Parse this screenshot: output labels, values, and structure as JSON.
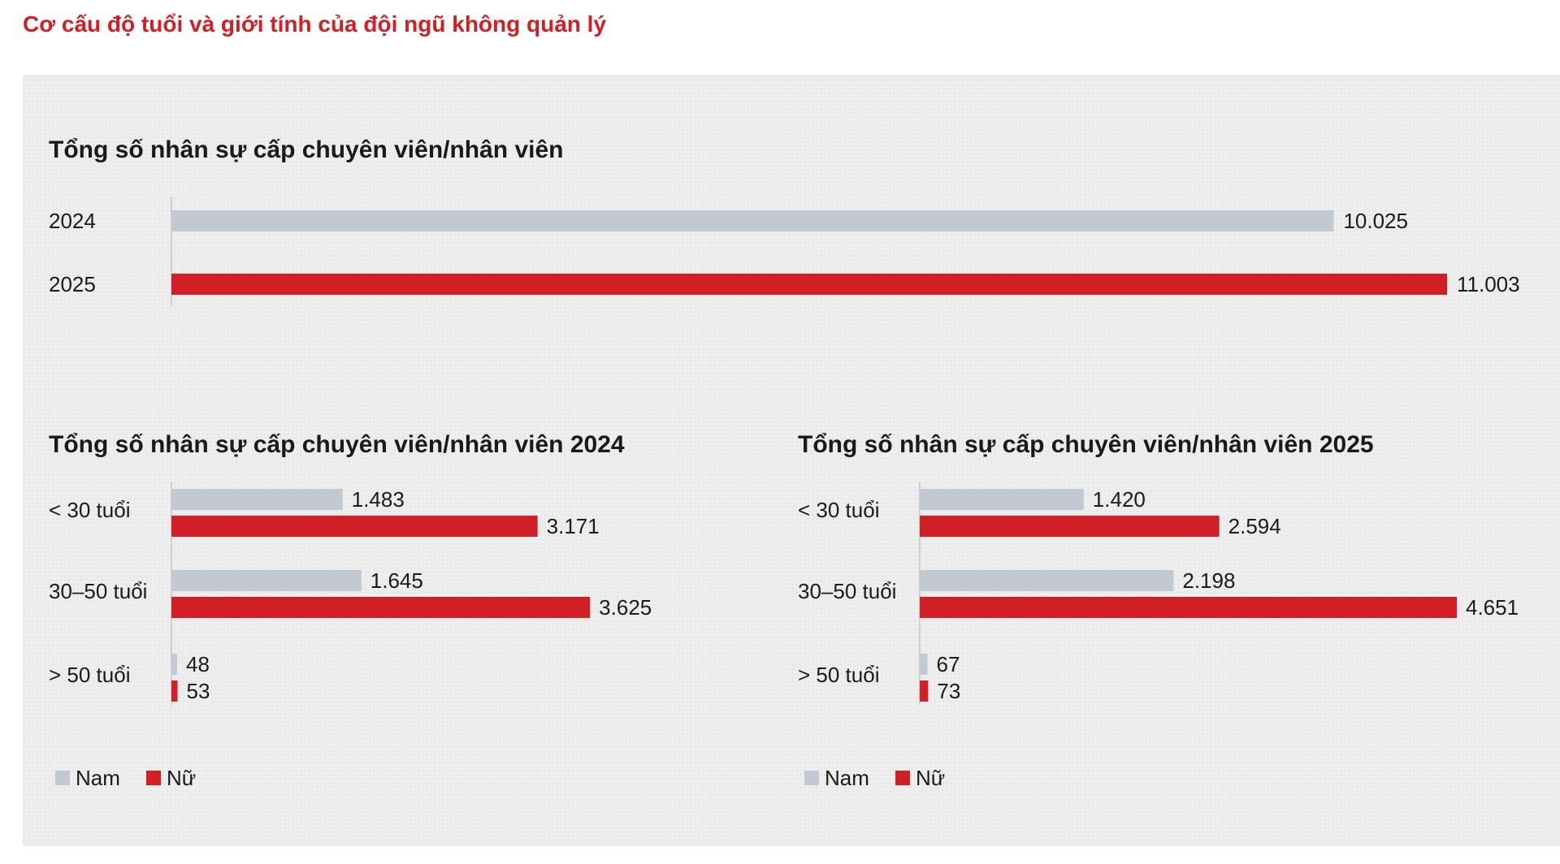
{
  "page_title": "Cơ cấu độ tuổi và giới tính của đội ngũ không quản lý",
  "colors": {
    "male": "#c3c9d3",
    "female": "#d21f26",
    "accent": "#d21f26"
  },
  "chart_data": [
    {
      "type": "bar",
      "orientation": "horizontal",
      "title": "Tổng số nhân sự cấp chuyên viên/nhân viên",
      "categories": [
        "2024",
        "2025"
      ],
      "values": [
        10025,
        11003
      ],
      "value_labels": [
        "10.025",
        "11.003"
      ],
      "bar_colors": [
        "#c3c9d3",
        "#d21f26"
      ],
      "xlim": [
        0,
        11003
      ]
    },
    {
      "type": "bar",
      "orientation": "horizontal",
      "title": "Tổng số nhân sự cấp chuyên viên/nhân viên 2024",
      "categories": [
        "< 30 tuổi",
        "30–50 tuổi",
        "> 50 tuổi"
      ],
      "series": [
        {
          "name": "Nam",
          "values": [
            1483,
            1645,
            48
          ],
          "labels": [
            "1.483",
            "1.645",
            "48"
          ]
        },
        {
          "name": "Nữ",
          "values": [
            3171,
            3625,
            53
          ],
          "labels": [
            "3.171",
            "3.625",
            "53"
          ]
        }
      ],
      "xlim": [
        0,
        4651
      ],
      "legend": [
        "Nam",
        "Nữ"
      ]
    },
    {
      "type": "bar",
      "orientation": "horizontal",
      "title": "Tổng số nhân sự cấp chuyên viên/nhân viên 2025",
      "categories": [
        "< 30 tuổi",
        "30–50 tuổi",
        "> 50 tuổi"
      ],
      "series": [
        {
          "name": "Nam",
          "values": [
            1420,
            2198,
            67
          ],
          "labels": [
            "1.420",
            "2.198",
            "67"
          ]
        },
        {
          "name": "Nữ",
          "values": [
            2594,
            4651,
            73
          ],
          "labels": [
            "2.594",
            "4.651",
            "73"
          ]
        }
      ],
      "xlim": [
        0,
        4651
      ],
      "legend": [
        "Nam",
        "Nữ"
      ]
    }
  ]
}
